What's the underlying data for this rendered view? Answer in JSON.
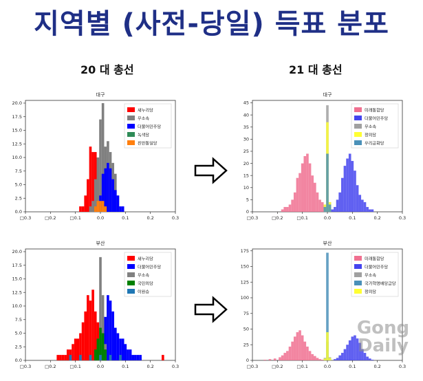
{
  "title": "지역별 (사전-당일) 득표 분포",
  "sections": {
    "left_label": "20 대 총선",
    "right_label": "21 대 총선"
  },
  "watermark": {
    "line1": "Gong",
    "line2": "Daily"
  },
  "chart_data": [
    {
      "type": "bar",
      "title": "대구",
      "xlabel": "",
      "ylabel": "",
      "xlim": [
        -0.3,
        0.3
      ],
      "ylim": [
        0,
        20.5
      ],
      "x_ticks": [
        -0.3,
        -0.2,
        -0.1,
        0.0,
        0.1,
        0.2,
        0.3
      ],
      "x_tick_labels": [
        "□0.3",
        "□0.2",
        "□0.1",
        "0.0",
        "0.1",
        "0.2",
        "0.3"
      ],
      "y_ticks": [
        0,
        2.5,
        5,
        7.5,
        10,
        12.5,
        15,
        17.5,
        20
      ],
      "y_tick_labels": [
        "0.0",
        "2.5",
        "5.0",
        "7.5",
        "10.0",
        "12.5",
        "15.0",
        "17.5",
        "20.0"
      ],
      "legend_position": "top-right",
      "bin_width": 0.01,
      "series": [
        {
          "name": "새누리당",
          "color": "#ff0000",
          "x": [
            -0.08,
            -0.07,
            -0.06,
            -0.05,
            -0.04,
            -0.03,
            -0.02,
            -0.01,
            0.0
          ],
          "values": [
            1,
            1,
            3,
            6,
            12,
            11,
            11,
            10,
            1
          ]
        },
        {
          "name": "무소속",
          "color": "#808080",
          "x": [
            -0.04,
            -0.03,
            -0.02,
            -0.01,
            0.0,
            0.01,
            0.02,
            0.03,
            0.04,
            0.05,
            0.06,
            0.07
          ],
          "values": [
            1,
            2,
            6,
            10,
            17,
            20,
            12,
            13,
            11,
            9,
            7,
            3
          ]
        },
        {
          "name": "더불어민주당",
          "color": "#0000ff",
          "x": [
            -0.01,
            0.0,
            0.01,
            0.02,
            0.03,
            0.04,
            0.05,
            0.06,
            0.07,
            0.08,
            0.09
          ],
          "values": [
            1,
            3,
            7,
            8,
            9,
            8,
            6,
            4,
            3,
            1,
            1
          ]
        },
        {
          "name": "녹색당",
          "color": "#2e8b57",
          "x": [
            -0.02,
            0.0,
            0.01
          ],
          "values": [
            1,
            1,
            1
          ]
        },
        {
          "name": "친반통일당",
          "color": "#ff7f0e",
          "x": [
            -0.02,
            -0.01,
            0.0,
            0.01,
            0.02
          ],
          "values": [
            1,
            2,
            2,
            2,
            1
          ]
        }
      ]
    },
    {
      "type": "bar",
      "title": "대구",
      "xlabel": "",
      "ylabel": "",
      "xlim": [
        -0.3,
        0.3
      ],
      "ylim": [
        0,
        46
      ],
      "x_ticks": [
        -0.3,
        -0.2,
        -0.1,
        0.0,
        0.1,
        0.2,
        0.3
      ],
      "x_tick_labels": [
        "□0.3",
        "□0.2",
        "□0.1",
        "0.0",
        "0.1",
        "0.2",
        "0.3"
      ],
      "y_ticks": [
        0,
        5,
        10,
        15,
        20,
        25,
        30,
        35,
        40,
        45
      ],
      "y_tick_labels": [
        "0",
        "5",
        "10",
        "15",
        "20",
        "25",
        "30",
        "35",
        "40",
        "45"
      ],
      "legend_position": "top-right",
      "bin_width": 0.01,
      "series": [
        {
          "name": "미래통합당",
          "color": "#f07090",
          "x": [
            -0.18,
            -0.17,
            -0.16,
            -0.15,
            -0.14,
            -0.13,
            -0.12,
            -0.11,
            -0.1,
            -0.09,
            -0.08,
            -0.07,
            -0.06,
            -0.05,
            -0.04,
            -0.03,
            -0.02,
            -0.01
          ],
          "values": [
            1,
            2,
            2,
            3,
            5,
            8,
            14,
            16,
            20,
            23,
            24,
            20,
            15,
            12,
            8,
            5,
            4,
            2
          ]
        },
        {
          "name": "더불어민주당",
          "color": "#4444ee",
          "x": [
            0.02,
            0.03,
            0.04,
            0.05,
            0.06,
            0.07,
            0.08,
            0.09,
            0.1,
            0.11,
            0.12,
            0.13,
            0.14,
            0.15,
            0.16,
            0.17,
            0.18
          ],
          "values": [
            1,
            2,
            5,
            8,
            14,
            19,
            22,
            24,
            21,
            17,
            11,
            7,
            5,
            4,
            2,
            1,
            1
          ]
        },
        {
          "name": "무소속",
          "color": "#a0a0a0",
          "x": [
            -0.01,
            0.0,
            0.01
          ],
          "values": [
            3,
            44,
            4
          ]
        },
        {
          "name": "정의당",
          "color": "#ffff33",
          "x": [
            -0.01,
            0.0,
            0.01
          ],
          "values": [
            3,
            37,
            4
          ]
        },
        {
          "name": "우리공화당",
          "color": "#4a90b8",
          "x": [
            -0.01,
            0.0,
            0.01
          ],
          "values": [
            2,
            24,
            3
          ]
        }
      ]
    },
    {
      "type": "bar",
      "title": "부산",
      "xlabel": "",
      "ylabel": "",
      "xlim": [
        -0.3,
        0.3
      ],
      "ylim": [
        0,
        20.5
      ],
      "x_ticks": [
        -0.3,
        -0.2,
        -0.1,
        0.0,
        0.1,
        0.2,
        0.3
      ],
      "x_tick_labels": [
        "□0.3",
        "□0.2",
        "□0.1",
        "0.0",
        "0.1",
        "0.2",
        "0.3"
      ],
      "y_ticks": [
        0,
        2.5,
        5,
        7.5,
        10,
        12.5,
        15,
        17.5,
        20
      ],
      "y_tick_labels": [
        "0.0",
        "2.5",
        "5.0",
        "7.5",
        "10.0",
        "12.5",
        "15.0",
        "17.5",
        "20.0"
      ],
      "legend_position": "top-right",
      "bin_width": 0.01,
      "series": [
        {
          "name": "새누리당",
          "color": "#ff0000",
          "x": [
            -0.17,
            -0.16,
            -0.15,
            -0.14,
            -0.13,
            -0.12,
            -0.11,
            -0.1,
            -0.09,
            -0.08,
            -0.07,
            -0.06,
            -0.05,
            -0.04,
            -0.03,
            -0.02,
            -0.01,
            0.0,
            0.01,
            0.02,
            0.25
          ],
          "values": [
            1,
            1,
            1,
            1,
            2,
            2,
            3,
            4,
            4,
            5,
            7,
            9,
            12,
            11,
            13,
            9,
            7,
            4,
            2,
            1,
            1
          ]
        },
        {
          "name": "더불어민주당",
          "color": "#0000ff",
          "x": [
            0.0,
            0.01,
            0.02,
            0.03,
            0.04,
            0.05,
            0.06,
            0.07,
            0.08,
            0.09,
            0.1,
            0.11,
            0.12,
            0.13,
            0.14,
            0.15,
            0.16
          ],
          "values": [
            2,
            3,
            8,
            12,
            11,
            9,
            6,
            5,
            4,
            4,
            3,
            2,
            2,
            1,
            1,
            1,
            1
          ]
        },
        {
          "name": "무소속",
          "color": "#808080",
          "x": [
            -0.01,
            0.0,
            0.01,
            0.02
          ],
          "values": [
            4,
            19,
            12,
            3
          ]
        },
        {
          "name": "국민의당",
          "color": "#008000",
          "x": [
            -0.02,
            -0.01,
            0.0,
            0.01,
            0.02
          ],
          "values": [
            2,
            4,
            6,
            5,
            2
          ]
        },
        {
          "name": "이완승",
          "color": "#1f77b4",
          "x": [
            -0.12,
            -0.08,
            -0.04,
            0.0,
            0.04,
            0.08
          ],
          "values": [
            1,
            1,
            1,
            1,
            1,
            1
          ]
        }
      ]
    },
    {
      "type": "bar",
      "title": "부산",
      "xlabel": "",
      "ylabel": "",
      "xlim": [
        -0.3,
        0.3
      ],
      "ylim": [
        0,
        178
      ],
      "x_ticks": [
        -0.3,
        -0.2,
        -0.1,
        0.0,
        0.1,
        0.2,
        0.3
      ],
      "x_tick_labels": [
        "□0.3",
        "□0.2",
        "□0.1",
        "0.0",
        "0.1",
        "0.2",
        "0.3"
      ],
      "y_ticks": [
        0,
        25,
        50,
        75,
        100,
        125,
        150,
        175
      ],
      "y_tick_labels": [
        "0",
        "25",
        "50",
        "75",
        "100",
        "125",
        "150",
        "175"
      ],
      "legend_position": "top-right",
      "bin_width": 0.01,
      "series": [
        {
          "name": "미래통합당",
          "color": "#f07090",
          "x": [
            -0.25,
            -0.23,
            -0.21,
            -0.19,
            -0.18,
            -0.17,
            -0.16,
            -0.15,
            -0.14,
            -0.13,
            -0.12,
            -0.11,
            -0.1,
            -0.09,
            -0.08,
            -0.07,
            -0.06,
            -0.05,
            -0.04,
            -0.03,
            -0.02
          ],
          "values": [
            1,
            2,
            3,
            5,
            8,
            12,
            15,
            22,
            30,
            38,
            45,
            48,
            40,
            30,
            22,
            15,
            10,
            7,
            4,
            2,
            1
          ]
        },
        {
          "name": "더불어민주당",
          "color": "#4444ee",
          "x": [
            0.03,
            0.04,
            0.05,
            0.06,
            0.07,
            0.08,
            0.09,
            0.1,
            0.11,
            0.12,
            0.13,
            0.14,
            0.15,
            0.16,
            0.17,
            0.18
          ],
          "values": [
            2,
            4,
            8,
            12,
            18,
            25,
            32,
            38,
            40,
            35,
            28,
            18,
            12,
            6,
            3,
            1
          ]
        },
        {
          "name": "무소속",
          "color": "#a0a0a0",
          "x": [
            -0.01,
            0.0,
            0.01
          ],
          "values": [
            4,
            30,
            5
          ]
        },
        {
          "name": "국가혁명배당금당",
          "color": "#4a90b8",
          "x": [
            -0.01,
            0.0,
            0.01
          ],
          "values": [
            3,
            172,
            4
          ]
        },
        {
          "name": "정의당",
          "color": "#ffff33",
          "x": [
            -0.01,
            0.0,
            0.01
          ],
          "values": [
            3,
            45,
            4
          ]
        }
      ]
    }
  ]
}
